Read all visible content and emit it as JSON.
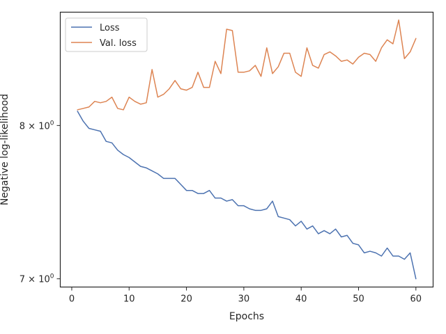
{
  "chart_data": {
    "type": "line",
    "xlabel": "Epochs",
    "ylabel": "Negative log-likelihood",
    "xlim": [
      -2,
      63
    ],
    "ylim": [
      6.95,
      8.83
    ],
    "yscale": "log",
    "grid": false,
    "legend_position": "top-left",
    "x_ticks": [
      0,
      10,
      20,
      30,
      40,
      50,
      60
    ],
    "y_ticks": [
      {
        "value": 7,
        "label_base": "7 × 10",
        "label_exp": "0"
      },
      {
        "value": 8,
        "label_base": "8 × 10",
        "label_exp": "0"
      }
    ],
    "x": [
      1,
      2,
      3,
      4,
      5,
      6,
      7,
      8,
      9,
      10,
      11,
      12,
      13,
      14,
      15,
      16,
      17,
      18,
      19,
      20,
      21,
      22,
      23,
      24,
      25,
      26,
      27,
      28,
      29,
      30,
      31,
      32,
      33,
      34,
      35,
      36,
      37,
      38,
      39,
      40,
      41,
      42,
      43,
      44,
      45,
      46,
      47,
      48,
      49,
      50,
      51,
      52,
      53,
      54,
      55,
      56,
      57,
      58,
      59,
      60
    ],
    "series": [
      {
        "name": "Loss",
        "color": "#4c72b0",
        "values": [
          8.1,
          8.03,
          7.98,
          7.97,
          7.96,
          7.89,
          7.88,
          7.83,
          7.8,
          7.78,
          7.75,
          7.72,
          7.71,
          7.69,
          7.67,
          7.64,
          7.64,
          7.64,
          7.6,
          7.56,
          7.56,
          7.54,
          7.54,
          7.56,
          7.51,
          7.51,
          7.49,
          7.5,
          7.46,
          7.46,
          7.44,
          7.43,
          7.43,
          7.44,
          7.49,
          7.39,
          7.38,
          7.37,
          7.33,
          7.36,
          7.31,
          7.33,
          7.28,
          7.3,
          7.28,
          7.31,
          7.26,
          7.27,
          7.22,
          7.21,
          7.16,
          7.17,
          7.16,
          7.14,
          7.19,
          7.14,
          7.14,
          7.12,
          7.16,
          7.0
        ]
      },
      {
        "name": "Val. loss",
        "color": "#dd8452",
        "values": [
          8.11,
          8.12,
          8.13,
          8.17,
          8.16,
          8.17,
          8.2,
          8.12,
          8.11,
          8.2,
          8.17,
          8.15,
          8.16,
          8.4,
          8.2,
          8.22,
          8.26,
          8.32,
          8.26,
          8.25,
          8.27,
          8.38,
          8.27,
          8.27,
          8.46,
          8.37,
          8.7,
          8.69,
          8.38,
          8.38,
          8.39,
          8.43,
          8.35,
          8.56,
          8.37,
          8.42,
          8.52,
          8.52,
          8.38,
          8.35,
          8.56,
          8.43,
          8.41,
          8.51,
          8.53,
          8.5,
          8.46,
          8.47,
          8.44,
          8.49,
          8.52,
          8.51,
          8.46,
          8.56,
          8.62,
          8.59,
          8.77,
          8.48,
          8.53,
          8.63
        ]
      }
    ]
  }
}
